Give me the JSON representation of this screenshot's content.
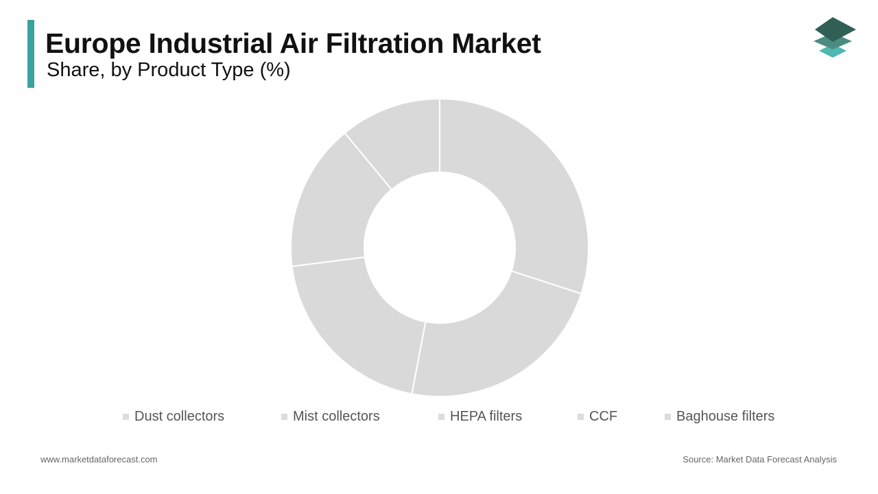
{
  "header": {
    "title": "Europe Industrial Air Filtration Market",
    "subtitle": "Share, by Product Type (%)",
    "accent_color": "#3aa3a0"
  },
  "logo": {
    "icon": "stacked-layers-logo-icon",
    "colors": [
      "#2f5f55",
      "#4a8c80",
      "#4fb8b0"
    ]
  },
  "chart_data": {
    "type": "pie",
    "donut": true,
    "title": "Europe Industrial Air Filtration Market",
    "subtitle": "Share, by Product Type (%)",
    "categories": [
      "Dust collectors",
      "Mist collectors",
      "HEPA filters",
      "CCF",
      "Baghouse filters"
    ],
    "values": [
      30,
      23,
      20,
      16,
      11
    ],
    "slice_color": "#d9d9d9",
    "separator_color": "#ffffff",
    "legend_swatch_color": "#dcdcdc",
    "legend_position": "bottom",
    "grid": false
  },
  "footer": {
    "website": "www.marketdataforecast.com",
    "source": "Source: Market Data Forecast Analysis"
  }
}
